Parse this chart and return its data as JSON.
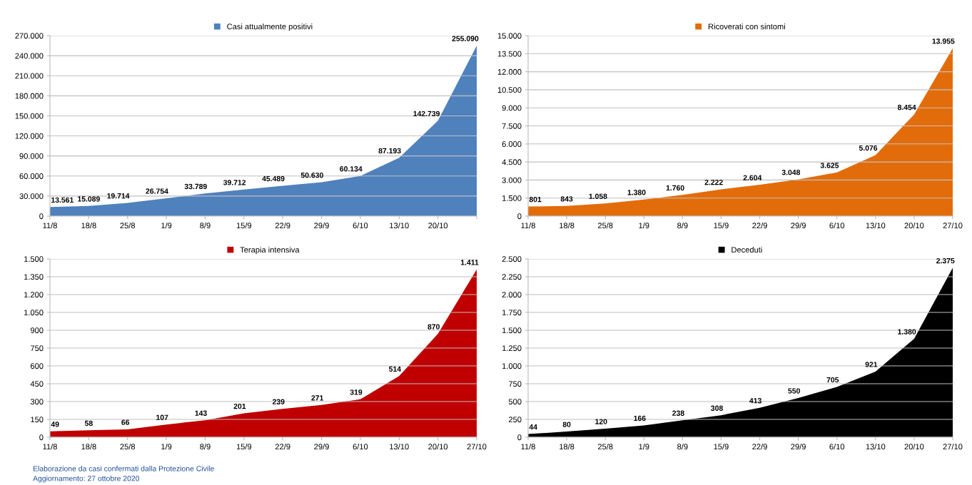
{
  "chart_data": [
    {
      "type": "area",
      "categories": [
        "11/8",
        "18/8",
        "25/8",
        "1/9",
        "8/9",
        "15/9",
        "22/9",
        "29/9",
        "6/10",
        "13/10",
        "20/10",
        null
      ],
      "series": [
        {
          "name": "Casi attualmente positivi",
          "color": "#4f81bd",
          "values": [
            13561,
            15089,
            19714,
            26754,
            33789,
            39712,
            45489,
            50630,
            60134,
            87193,
            142739,
            255090
          ],
          "value_labels": [
            "13.561",
            "15.089",
            "19.714",
            "26.754",
            "33.789",
            "39.712",
            "45.489",
            "50.630",
            "60.134",
            "87.193",
            "142.739",
            "255.090"
          ]
        }
      ],
      "ylim": [
        0,
        270000
      ],
      "yticks": [
        0,
        {
          "value": 30000,
          "label": "30.000"
        },
        {
          "value": 60000,
          "label": "60.000"
        },
        {
          "value": 90000,
          "label": "90.000"
        },
        {
          "value": 120000,
          "label": "120.000"
        },
        {
          "value": 150000,
          "label": "150.000"
        },
        {
          "value": 180000,
          "label": "180.000"
        },
        {
          "value": 210000,
          "label": "210.000"
        },
        {
          "value": 240000,
          "label": "240.000"
        },
        {
          "value": 270000,
          "label": "270.000"
        }
      ],
      "grid": "y",
      "legend": "top"
    },
    {
      "type": "area",
      "categories": [
        "11/8",
        "18/8",
        "25/8",
        "1/9",
        "8/9",
        "15/9",
        "22/9",
        "29/9",
        "6/10",
        "13/10",
        "20/10",
        "27/10"
      ],
      "series": [
        {
          "name": "Ricoverati con sintomi",
          "color": "#e36c0a",
          "values": [
            801,
            843,
            1058,
            1380,
            1760,
            2222,
            2604,
            3048,
            3625,
            5076,
            8454,
            13955
          ],
          "value_labels": [
            "801",
            "843",
            "1.058",
            "1.380",
            "1.760",
            "2.222",
            "2.604",
            "3.048",
            "3.625",
            "5.076",
            "8.454",
            "13.955"
          ]
        }
      ],
      "ylim": [
        0,
        15000
      ],
      "yticks": [
        0,
        {
          "value": 1500,
          "label": "1.500"
        },
        {
          "value": 3000,
          "label": "3.000"
        },
        {
          "value": 4500,
          "label": "4.500"
        },
        {
          "value": 6000,
          "label": "6.000"
        },
        {
          "value": 7500,
          "label": "7.500"
        },
        {
          "value": 9000,
          "label": "9.000"
        },
        {
          "value": 10500,
          "label": "10.500"
        },
        {
          "value": 12000,
          "label": "12.000"
        },
        {
          "value": 13500,
          "label": "13.500"
        },
        {
          "value": 15000,
          "label": "15.000"
        }
      ],
      "grid": "y",
      "legend": "top"
    },
    {
      "type": "area",
      "categories": [
        "11/8",
        "18/8",
        "25/8",
        "1/9",
        "8/9",
        "15/9",
        "22/9",
        "29/9",
        "6/10",
        "13/10",
        "20/10",
        "27/10"
      ],
      "series": [
        {
          "name": "Terapia intensiva",
          "color": "#c00000",
          "values": [
            49,
            58,
            66,
            107,
            143,
            201,
            239,
            271,
            319,
            514,
            870,
            1411
          ],
          "value_labels": [
            "49",
            "58",
            "66",
            "107",
            "143",
            "201",
            "239",
            "271",
            "319",
            "514",
            "870",
            "1.411"
          ]
        }
      ],
      "ylim": [
        0,
        1500
      ],
      "yticks": [
        0,
        150,
        300,
        450,
        600,
        750,
        900,
        {
          "value": 1050,
          "label": "1.050"
        },
        {
          "value": 1200,
          "label": "1.200"
        },
        {
          "value": 1350,
          "label": "1.350"
        },
        {
          "value": 1500,
          "label": "1.500"
        }
      ],
      "grid": "y",
      "legend": "top",
      "annotations": [
        "Elaborazione da casi confermati dalla Protezione Civile",
        "Aggiornamento: 27 ottobre 2020"
      ]
    },
    {
      "type": "area",
      "categories": [
        "11/8",
        "18/8",
        "25/8",
        "1/9",
        "8/9",
        "15/9",
        "22/9",
        "29/9",
        "6/10",
        "13/10",
        "20/10",
        "27/10"
      ],
      "series": [
        {
          "name": "Deceduti",
          "color": "#000000",
          "values": [
            44,
            80,
            120,
            166,
            238,
            308,
            413,
            550,
            705,
            921,
            1380,
            2375
          ],
          "value_labels": [
            "44",
            "80",
            "120",
            "166",
            "238",
            "308",
            "413",
            "550",
            "705",
            "921",
            "1.380",
            "2.375"
          ]
        }
      ],
      "ylim": [
        0,
        2500
      ],
      "yticks": [
        0,
        250,
        500,
        750,
        {
          "value": 1000,
          "label": "1.000"
        },
        {
          "value": 1250,
          "label": "1.250"
        },
        {
          "value": 1500,
          "label": "1.500"
        },
        {
          "value": 1750,
          "label": "1.750"
        },
        {
          "value": 2000,
          "label": "2.000"
        },
        {
          "value": 2250,
          "label": "2.250"
        },
        {
          "value": 2500,
          "label": "2.500"
        }
      ],
      "grid": "y",
      "legend": "top"
    }
  ]
}
